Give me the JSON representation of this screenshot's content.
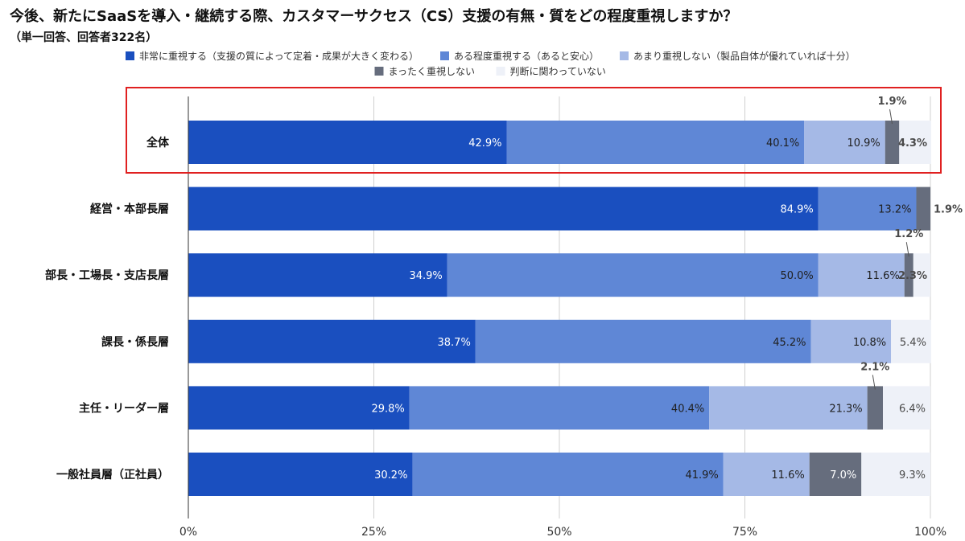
{
  "chart_data": {
    "type": "bar",
    "orientation": "horizontal",
    "stacked": true,
    "title": "今後、新たにSaaSを導入・継続する際、カスタマーサクセス（CS）支援の有無・質をどの程度重視しますか？",
    "subtitle": "（単一回答、回答者322名）",
    "categories": [
      "全体",
      "経営・本部長層",
      "部長・工場長・支店長層",
      "課長・係長層",
      "主任・リーダー層",
      "一般社員層（正社員）"
    ],
    "series": [
      {
        "name": "非常に重視する（支援の質によって定着・成果が大きく変わる）",
        "color": "#1a4fbf",
        "label_color": "#ffffff",
        "values": [
          42.9,
          84.9,
          34.9,
          38.7,
          29.8,
          30.2
        ],
        "labels": [
          "42.9%",
          "84.9%",
          "34.9%",
          "38.7%",
          "29.8%",
          "30.2%"
        ]
      },
      {
        "name": "ある程度重視する（あると安心）",
        "color": "#5f87d6",
        "label_color": "#1f1f1f",
        "values": [
          40.1,
          13.2,
          50.0,
          45.2,
          40.4,
          41.9
        ],
        "labels": [
          "40.1%",
          "13.2%",
          "50.0%",
          "45.2%",
          "40.4%",
          "41.9%"
        ]
      },
      {
        "name": "あまり重視しない（製品自体が優れていれば十分）",
        "color": "#a5b9e6",
        "label_color": "#1f1f1f",
        "values": [
          10.9,
          0,
          11.6,
          10.8,
          21.3,
          11.6
        ],
        "labels": [
          "10.9%",
          "",
          "11.6%",
          "10.8%",
          "21.3%",
          "11.6%"
        ]
      },
      {
        "name": "まったく重視しない",
        "color": "#666d7d",
        "label_color": "#ffffff",
        "values": [
          1.9,
          1.9,
          1.2,
          0,
          2.1,
          7.0
        ],
        "labels": [
          "1.9%",
          "1.9%",
          "1.2%",
          "",
          "2.1%",
          "7.0%"
        ]
      },
      {
        "name": "判断に関わっていない",
        "color": "#eef1f8",
        "label_color": "#4a4a4a",
        "values": [
          4.3,
          0,
          2.3,
          5.4,
          6.4,
          9.3
        ],
        "labels": [
          "4.3%",
          "",
          "2.3%",
          "5.4%",
          "6.4%",
          "9.3%"
        ]
      }
    ],
    "xlim": [
      0,
      100
    ],
    "xticks": [
      0,
      25,
      50,
      75,
      100
    ],
    "xtick_labels": [
      "0%",
      "25%",
      "50%",
      "75%",
      "100%"
    ],
    "grid": true,
    "legend_position": "top",
    "highlight_category": "全体",
    "highlight_color": "#e02020"
  }
}
